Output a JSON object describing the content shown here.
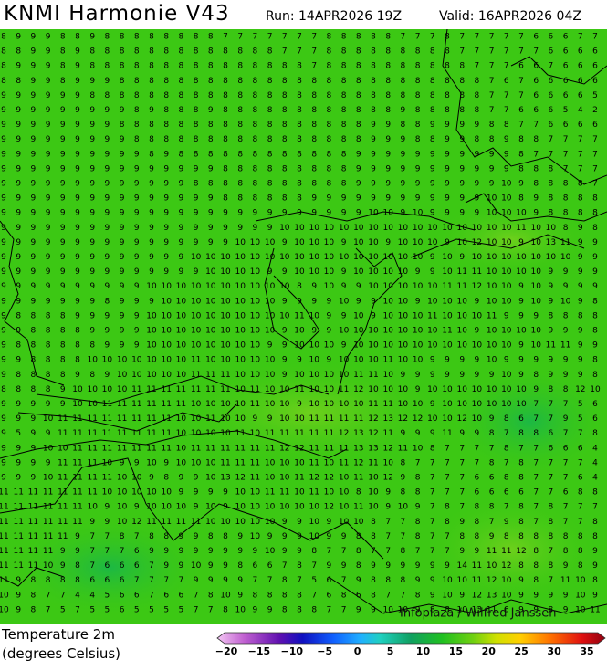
{
  "header": {
    "title": "KNMI Harmonie V43",
    "run": "Run: 14APR2026 19Z",
    "valid": "Valid: 16APR2026 04Z"
  },
  "map": {
    "credit": "Infoplaza / Wilfred Janssen",
    "grid": [
      [
        8,
        9,
        9,
        9,
        8,
        8,
        9,
        8,
        8,
        8,
        8,
        8,
        8,
        8,
        8,
        7,
        7,
        7,
        7,
        7,
        7,
        7,
        8,
        8,
        8,
        8,
        8,
        7,
        7,
        7,
        8,
        7,
        7,
        7,
        7,
        7,
        6,
        6,
        6,
        7,
        7
      ],
      [
        8,
        8,
        9,
        9,
        8,
        9,
        8,
        8,
        8,
        8,
        8,
        8,
        8,
        8,
        8,
        8,
        8,
        8,
        8,
        7,
        7,
        7,
        8,
        8,
        8,
        8,
        8,
        8,
        8,
        8,
        8,
        7,
        7,
        7,
        7,
        7,
        7,
        6,
        6,
        6,
        6
      ],
      [
        8,
        9,
        9,
        9,
        8,
        9,
        8,
        8,
        8,
        8,
        8,
        8,
        8,
        8,
        8,
        8,
        8,
        8,
        8,
        8,
        8,
        7,
        8,
        8,
        8,
        8,
        8,
        8,
        8,
        8,
        8,
        8,
        7,
        7,
        7,
        6,
        6,
        7,
        6,
        6,
        6
      ],
      [
        8,
        8,
        9,
        9,
        8,
        9,
        9,
        9,
        8,
        8,
        8,
        8,
        8,
        8,
        8,
        8,
        8,
        8,
        8,
        8,
        8,
        8,
        8,
        8,
        8,
        8,
        8,
        8,
        8,
        8,
        8,
        8,
        8,
        7,
        6,
        7,
        6,
        6,
        6,
        6,
        6
      ],
      [
        9,
        9,
        9,
        9,
        9,
        9,
        8,
        8,
        8,
        8,
        8,
        8,
        8,
        8,
        8,
        8,
        8,
        8,
        8,
        8,
        8,
        8,
        8,
        8,
        8,
        8,
        8,
        8,
        8,
        8,
        8,
        8,
        8,
        7,
        7,
        7,
        6,
        6,
        6,
        6,
        5
      ],
      [
        9,
        9,
        9,
        9,
        9,
        9,
        9,
        9,
        9,
        8,
        9,
        8,
        8,
        8,
        9,
        8,
        8,
        8,
        8,
        8,
        8,
        8,
        8,
        8,
        8,
        8,
        8,
        9,
        8,
        8,
        8,
        8,
        8,
        7,
        7,
        6,
        6,
        6,
        5,
        4,
        2
      ],
      [
        9,
        9,
        9,
        9,
        9,
        9,
        9,
        9,
        8,
        8,
        8,
        8,
        8,
        8,
        8,
        8,
        8,
        8,
        8,
        8,
        8,
        8,
        8,
        8,
        8,
        9,
        9,
        8,
        8,
        9,
        9,
        9,
        9,
        8,
        8,
        7,
        7,
        6,
        6,
        6,
        6
      ],
      [
        9,
        9,
        9,
        9,
        9,
        9,
        9,
        9,
        9,
        8,
        8,
        8,
        8,
        8,
        8,
        8,
        8,
        8,
        8,
        8,
        8,
        8,
        8,
        8,
        8,
        9,
        9,
        9,
        8,
        8,
        9,
        9,
        8,
        8,
        9,
        8,
        8,
        7,
        7,
        7,
        7
      ],
      [
        9,
        9,
        9,
        9,
        9,
        9,
        9,
        9,
        9,
        9,
        8,
        9,
        8,
        8,
        8,
        8,
        8,
        8,
        8,
        8,
        8,
        8,
        8,
        8,
        9,
        9,
        9,
        9,
        9,
        9,
        9,
        9,
        9,
        9,
        9,
        8,
        7,
        7,
        7,
        7,
        7
      ],
      [
        9,
        9,
        9,
        9,
        9,
        9,
        9,
        9,
        9,
        9,
        9,
        9,
        9,
        9,
        9,
        8,
        8,
        8,
        8,
        8,
        8,
        8,
        8,
        8,
        9,
        9,
        9,
        9,
        9,
        9,
        9,
        9,
        9,
        9,
        9,
        8,
        8,
        8,
        7,
        7,
        7
      ],
      [
        9,
        9,
        9,
        9,
        9,
        9,
        9,
        9,
        9,
        9,
        9,
        9,
        9,
        8,
        8,
        8,
        8,
        8,
        8,
        8,
        8,
        8,
        8,
        8,
        9,
        9,
        9,
        9,
        9,
        9,
        9,
        9,
        9,
        9,
        10,
        9,
        8,
        8,
        8,
        8,
        7
      ],
      [
        9,
        9,
        9,
        9,
        9,
        9,
        9,
        9,
        9,
        9,
        9,
        9,
        9,
        9,
        9,
        8,
        8,
        8,
        8,
        8,
        8,
        9,
        9,
        9,
        9,
        9,
        9,
        9,
        9,
        9,
        9,
        9,
        9,
        10,
        10,
        8,
        9,
        8,
        8,
        8,
        8
      ],
      [
        9,
        9,
        9,
        9,
        9,
        9,
        9,
        9,
        9,
        9,
        9,
        9,
        9,
        9,
        9,
        9,
        9,
        9,
        9,
        9,
        9,
        9,
        9,
        9,
        9,
        10,
        10,
        9,
        10,
        9,
        9,
        9,
        9,
        10,
        10,
        10,
        9,
        8,
        8,
        8,
        8
      ],
      [
        9,
        9,
        9,
        9,
        9,
        9,
        9,
        9,
        9,
        9,
        9,
        9,
        9,
        9,
        9,
        9,
        9,
        9,
        9,
        10,
        10,
        10,
        10,
        10,
        10,
        10,
        10,
        10,
        10,
        10,
        10,
        10,
        10,
        10,
        10,
        11,
        10,
        10,
        8,
        9,
        8
      ],
      [
        9,
        9,
        9,
        9,
        9,
        9,
        9,
        9,
        9,
        9,
        9,
        9,
        9,
        9,
        9,
        9,
        10,
        10,
        10,
        9,
        10,
        10,
        10,
        9,
        10,
        10,
        9,
        10,
        10,
        10,
        9,
        10,
        12,
        10,
        10,
        9,
        10,
        13,
        11,
        9,
        9
      ],
      [
        9,
        9,
        9,
        9,
        9,
        9,
        9,
        9,
        9,
        9,
        9,
        9,
        9,
        10,
        10,
        10,
        10,
        10,
        10,
        10,
        10,
        10,
        10,
        10,
        10,
        10,
        10,
        10,
        10,
        9,
        10,
        9,
        10,
        10,
        10,
        10,
        10,
        10,
        10,
        9,
        9
      ],
      [
        9,
        9,
        9,
        9,
        9,
        9,
        9,
        9,
        9,
        9,
        9,
        9,
        9,
        9,
        10,
        10,
        10,
        10,
        9,
        9,
        10,
        10,
        10,
        9,
        10,
        10,
        10,
        10,
        9,
        9,
        10,
        11,
        11,
        10,
        10,
        10,
        10,
        9,
        9,
        9,
        9
      ],
      [
        9,
        9,
        9,
        9,
        9,
        9,
        9,
        9,
        9,
        9,
        10,
        10,
        10,
        10,
        10,
        10,
        10,
        10,
        10,
        10,
        8,
        9,
        10,
        9,
        9,
        10,
        10,
        10,
        10,
        10,
        11,
        11,
        12,
        10,
        10,
        9,
        10,
        9,
        9,
        9,
        9
      ],
      [
        9,
        9,
        9,
        9,
        9,
        9,
        9,
        8,
        9,
        9,
        9,
        10,
        10,
        10,
        10,
        10,
        10,
        10,
        10,
        9,
        9,
        9,
        9,
        10,
        9,
        9,
        10,
        10,
        9,
        10,
        10,
        10,
        9,
        10,
        10,
        9,
        10,
        9,
        10,
        9,
        8
      ],
      [
        9,
        8,
        8,
        8,
        8,
        9,
        9,
        9,
        9,
        9,
        10,
        10,
        10,
        10,
        10,
        10,
        10,
        10,
        10,
        10,
        11,
        10,
        9,
        9,
        10,
        9,
        10,
        10,
        10,
        11,
        10,
        10,
        10,
        11,
        9,
        9,
        9,
        8,
        8,
        8,
        8
      ],
      [
        9,
        9,
        8,
        8,
        8,
        8,
        9,
        9,
        9,
        9,
        10,
        10,
        10,
        10,
        10,
        10,
        10,
        10,
        10,
        9,
        10,
        9,
        9,
        10,
        10,
        10,
        10,
        10,
        10,
        10,
        11,
        10,
        9,
        10,
        10,
        10,
        10,
        9,
        9,
        9,
        8
      ],
      [
        9,
        8,
        8,
        8,
        8,
        8,
        8,
        9,
        9,
        9,
        10,
        10,
        10,
        10,
        10,
        10,
        10,
        10,
        9,
        9,
        10,
        10,
        10,
        9,
        10,
        10,
        10,
        10,
        10,
        10,
        10,
        10,
        10,
        10,
        10,
        9,
        10,
        11,
        11,
        9,
        9
      ],
      [
        9,
        9,
        8,
        8,
        8,
        8,
        10,
        10,
        10,
        10,
        10,
        10,
        10,
        11,
        10,
        10,
        10,
        10,
        10,
        9,
        9,
        10,
        9,
        10,
        10,
        10,
        11,
        10,
        10,
        9,
        9,
        9,
        9,
        10,
        9,
        9,
        9,
        9,
        9,
        9,
        8
      ],
      [
        9,
        8,
        8,
        8,
        8,
        9,
        8,
        9,
        10,
        10,
        10,
        10,
        10,
        11,
        11,
        11,
        10,
        10,
        10,
        9,
        10,
        10,
        10,
        10,
        11,
        11,
        10,
        9,
        9,
        9,
        9,
        9,
        9,
        9,
        10,
        9,
        8,
        9,
        9,
        9,
        8
      ],
      [
        8,
        8,
        8,
        8,
        9,
        10,
        10,
        10,
        10,
        11,
        11,
        11,
        11,
        11,
        11,
        11,
        10,
        11,
        10,
        10,
        11,
        10,
        10,
        11,
        12,
        10,
        10,
        10,
        9,
        10,
        10,
        10,
        10,
        10,
        10,
        10,
        9,
        8,
        8,
        12,
        10
      ],
      [
        9,
        9,
        9,
        9,
        9,
        10,
        10,
        11,
        11,
        11,
        11,
        11,
        11,
        10,
        10,
        10,
        10,
        11,
        10,
        10,
        9,
        10,
        10,
        10,
        10,
        11,
        11,
        10,
        10,
        9,
        10,
        10,
        10,
        10,
        10,
        10,
        7,
        7,
        7,
        5,
        6
      ],
      [
        9,
        9,
        9,
        10,
        11,
        11,
        11,
        11,
        11,
        11,
        11,
        11,
        10,
        10,
        11,
        10,
        10,
        9,
        9,
        10,
        10,
        11,
        11,
        11,
        11,
        12,
        13,
        12,
        12,
        10,
        10,
        12,
        10,
        9,
        8,
        6,
        7,
        7,
        9,
        5,
        6
      ],
      [
        9,
        5,
        9,
        9,
        11,
        11,
        11,
        11,
        11,
        11,
        11,
        11,
        10,
        10,
        10,
        10,
        11,
        10,
        11,
        11,
        11,
        11,
        11,
        12,
        13,
        12,
        11,
        9,
        9,
        9,
        11,
        9,
        9,
        8,
        7,
        8,
        8,
        6,
        7,
        7,
        8
      ],
      [
        9,
        9,
        9,
        10,
        10,
        11,
        11,
        11,
        11,
        11,
        11,
        11,
        10,
        11,
        11,
        11,
        11,
        11,
        11,
        12,
        12,
        11,
        11,
        11,
        13,
        13,
        12,
        11,
        10,
        8,
        7,
        7,
        7,
        7,
        8,
        7,
        7,
        6,
        6,
        6,
        4
      ],
      [
        9,
        9,
        9,
        9,
        11,
        11,
        11,
        10,
        9,
        9,
        10,
        9,
        10,
        10,
        10,
        11,
        11,
        11,
        10,
        10,
        10,
        11,
        10,
        11,
        12,
        11,
        10,
        8,
        7,
        7,
        7,
        7,
        7,
        8,
        7,
        8,
        7,
        7,
        7,
        7,
        4
      ],
      [
        9,
        9,
        9,
        10,
        11,
        11,
        11,
        11,
        10,
        10,
        9,
        8,
        9,
        9,
        10,
        13,
        12,
        11,
        10,
        10,
        11,
        12,
        12,
        10,
        11,
        10,
        12,
        9,
        8,
        7,
        7,
        7,
        6,
        6,
        8,
        8,
        7,
        7,
        7,
        6,
        4
      ],
      [
        11,
        11,
        11,
        11,
        11,
        11,
        11,
        10,
        10,
        10,
        10,
        10,
        9,
        9,
        9,
        9,
        10,
        10,
        11,
        11,
        10,
        11,
        10,
        10,
        8,
        10,
        9,
        8,
        8,
        7,
        7,
        7,
        6,
        6,
        6,
        6,
        7,
        7,
        6,
        8,
        8
      ],
      [
        11,
        11,
        11,
        11,
        11,
        11,
        10,
        9,
        10,
        9,
        10,
        10,
        10,
        9,
        10,
        9,
        10,
        10,
        10,
        10,
        10,
        10,
        12,
        10,
        11,
        10,
        9,
        10,
        9,
        7,
        8,
        7,
        8,
        8,
        7,
        8,
        7,
        8,
        7,
        7,
        7
      ],
      [
        11,
        11,
        11,
        11,
        11,
        11,
        9,
        9,
        10,
        12,
        11,
        11,
        11,
        11,
        10,
        10,
        10,
        10,
        10,
        9,
        9,
        10,
        9,
        10,
        10,
        8,
        7,
        7,
        8,
        7,
        8,
        9,
        8,
        7,
        9,
        8,
        7,
        8,
        7,
        7,
        8
      ],
      [
        11,
        11,
        11,
        11,
        11,
        9,
        7,
        7,
        8,
        7,
        8,
        8,
        9,
        9,
        8,
        8,
        9,
        10,
        9,
        9,
        9,
        10,
        9,
        9,
        8,
        8,
        7,
        7,
        8,
        7,
        7,
        8,
        8,
        9,
        8,
        8,
        8,
        8,
        8,
        8,
        8
      ],
      [
        11,
        11,
        11,
        11,
        9,
        9,
        7,
        7,
        7,
        6,
        9,
        9,
        9,
        9,
        9,
        9,
        9,
        9,
        10,
        9,
        9,
        8,
        7,
        7,
        8,
        7,
        7,
        8,
        7,
        7,
        7,
        9,
        9,
        11,
        11,
        12,
        8,
        7,
        8,
        8,
        9
      ],
      [
        11,
        11,
        11,
        10,
        9,
        8,
        7,
        6,
        6,
        6,
        7,
        9,
        9,
        10,
        9,
        9,
        8,
        6,
        6,
        7,
        8,
        7,
        9,
        9,
        8,
        9,
        9,
        9,
        9,
        9,
        9,
        14,
        11,
        10,
        12,
        8,
        8,
        8,
        9,
        8,
        9
      ],
      [
        11,
        9,
        8,
        8,
        8,
        8,
        6,
        6,
        6,
        7,
        7,
        7,
        7,
        9,
        9,
        9,
        9,
        7,
        7,
        8,
        7,
        5,
        6,
        7,
        9,
        8,
        8,
        8,
        9,
        9,
        10,
        10,
        11,
        12,
        10,
        9,
        8,
        7,
        11,
        10,
        8
      ],
      [
        10,
        9,
        8,
        7,
        7,
        4,
        4,
        5,
        6,
        6,
        7,
        6,
        6,
        7,
        8,
        10,
        9,
        8,
        8,
        8,
        8,
        7,
        6,
        8,
        6,
        8,
        7,
        7,
        8,
        9,
        10,
        9,
        12,
        13,
        10,
        9,
        9,
        9,
        9,
        10,
        9
      ],
      [
        10,
        9,
        8,
        7,
        5,
        7,
        5,
        5,
        6,
        5,
        5,
        5,
        5,
        7,
        7,
        8,
        10,
        9,
        9,
        8,
        8,
        8,
        7,
        7,
        9,
        9,
        10,
        10,
        9,
        8,
        8,
        10,
        13,
        11,
        6,
        9,
        9,
        8,
        9,
        10,
        11
      ]
    ]
  },
  "legend": {
    "title": "Temperature 2m",
    "units": "(degrees Celsius)",
    "ticks": [
      "−20",
      "−15",
      "−10",
      "−5",
      "0",
      "5",
      "10",
      "15",
      "20",
      "25",
      "30",
      "35"
    ]
  }
}
